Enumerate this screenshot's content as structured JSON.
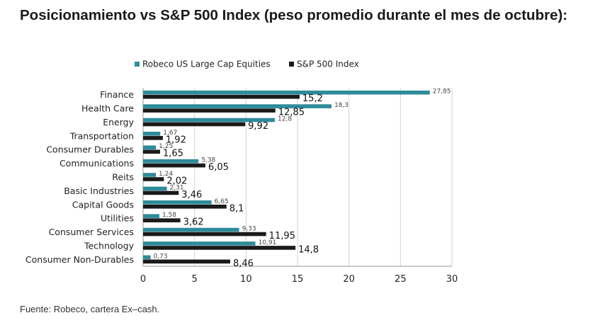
{
  "page": {
    "title": "Posicionamiento vs S&P 500 Index (peso promedio durante el mes de octubre):",
    "source": "Fuente: Robeco, cartera Ex–cash."
  },
  "chart_data": {
    "type": "bar",
    "orientation": "horizontal",
    "categories": [
      "Finance",
      "Health Care",
      "Energy",
      "Transportation",
      "Consumer Durables",
      "Communications",
      "Reits",
      "Basic Industries",
      "Capital Goods",
      "Utilities",
      "Consumer Services",
      "Technology",
      "Consumer Non-Durables"
    ],
    "series": [
      {
        "name": "Robeco US Large Cap Equities",
        "color": "#2e8b9a",
        "values": [
          27.85,
          18.3,
          12.8,
          1.67,
          1.25,
          5.38,
          1.24,
          2.31,
          6.65,
          1.58,
          9.33,
          10.91,
          0.73
        ],
        "labels": [
          "27,85",
          "18,3",
          "12,8",
          "1,67",
          "1,25",
          "5,38",
          "1,24",
          "2,31",
          "6,65",
          "1,58",
          "9,33",
          "10,91",
          "0,73"
        ]
      },
      {
        "name": "S&P 500 Index",
        "color": "#1a1a1a",
        "values": [
          15.2,
          12.85,
          9.92,
          1.92,
          1.65,
          6.05,
          2.02,
          3.46,
          8.1,
          3.62,
          11.95,
          14.8,
          8.46
        ],
        "labels": [
          "15,2",
          "12,85",
          "9,92",
          "1,92",
          "1,65",
          "6,05",
          "2,02",
          "3,46",
          "8,1",
          "3,62",
          "11,95",
          "14,8",
          "8,46"
        ]
      }
    ],
    "xlim": [
      0,
      30
    ],
    "xticks": [
      0,
      5,
      10,
      15,
      20,
      25,
      30
    ],
    "grid": "vertical",
    "legend": "top"
  }
}
